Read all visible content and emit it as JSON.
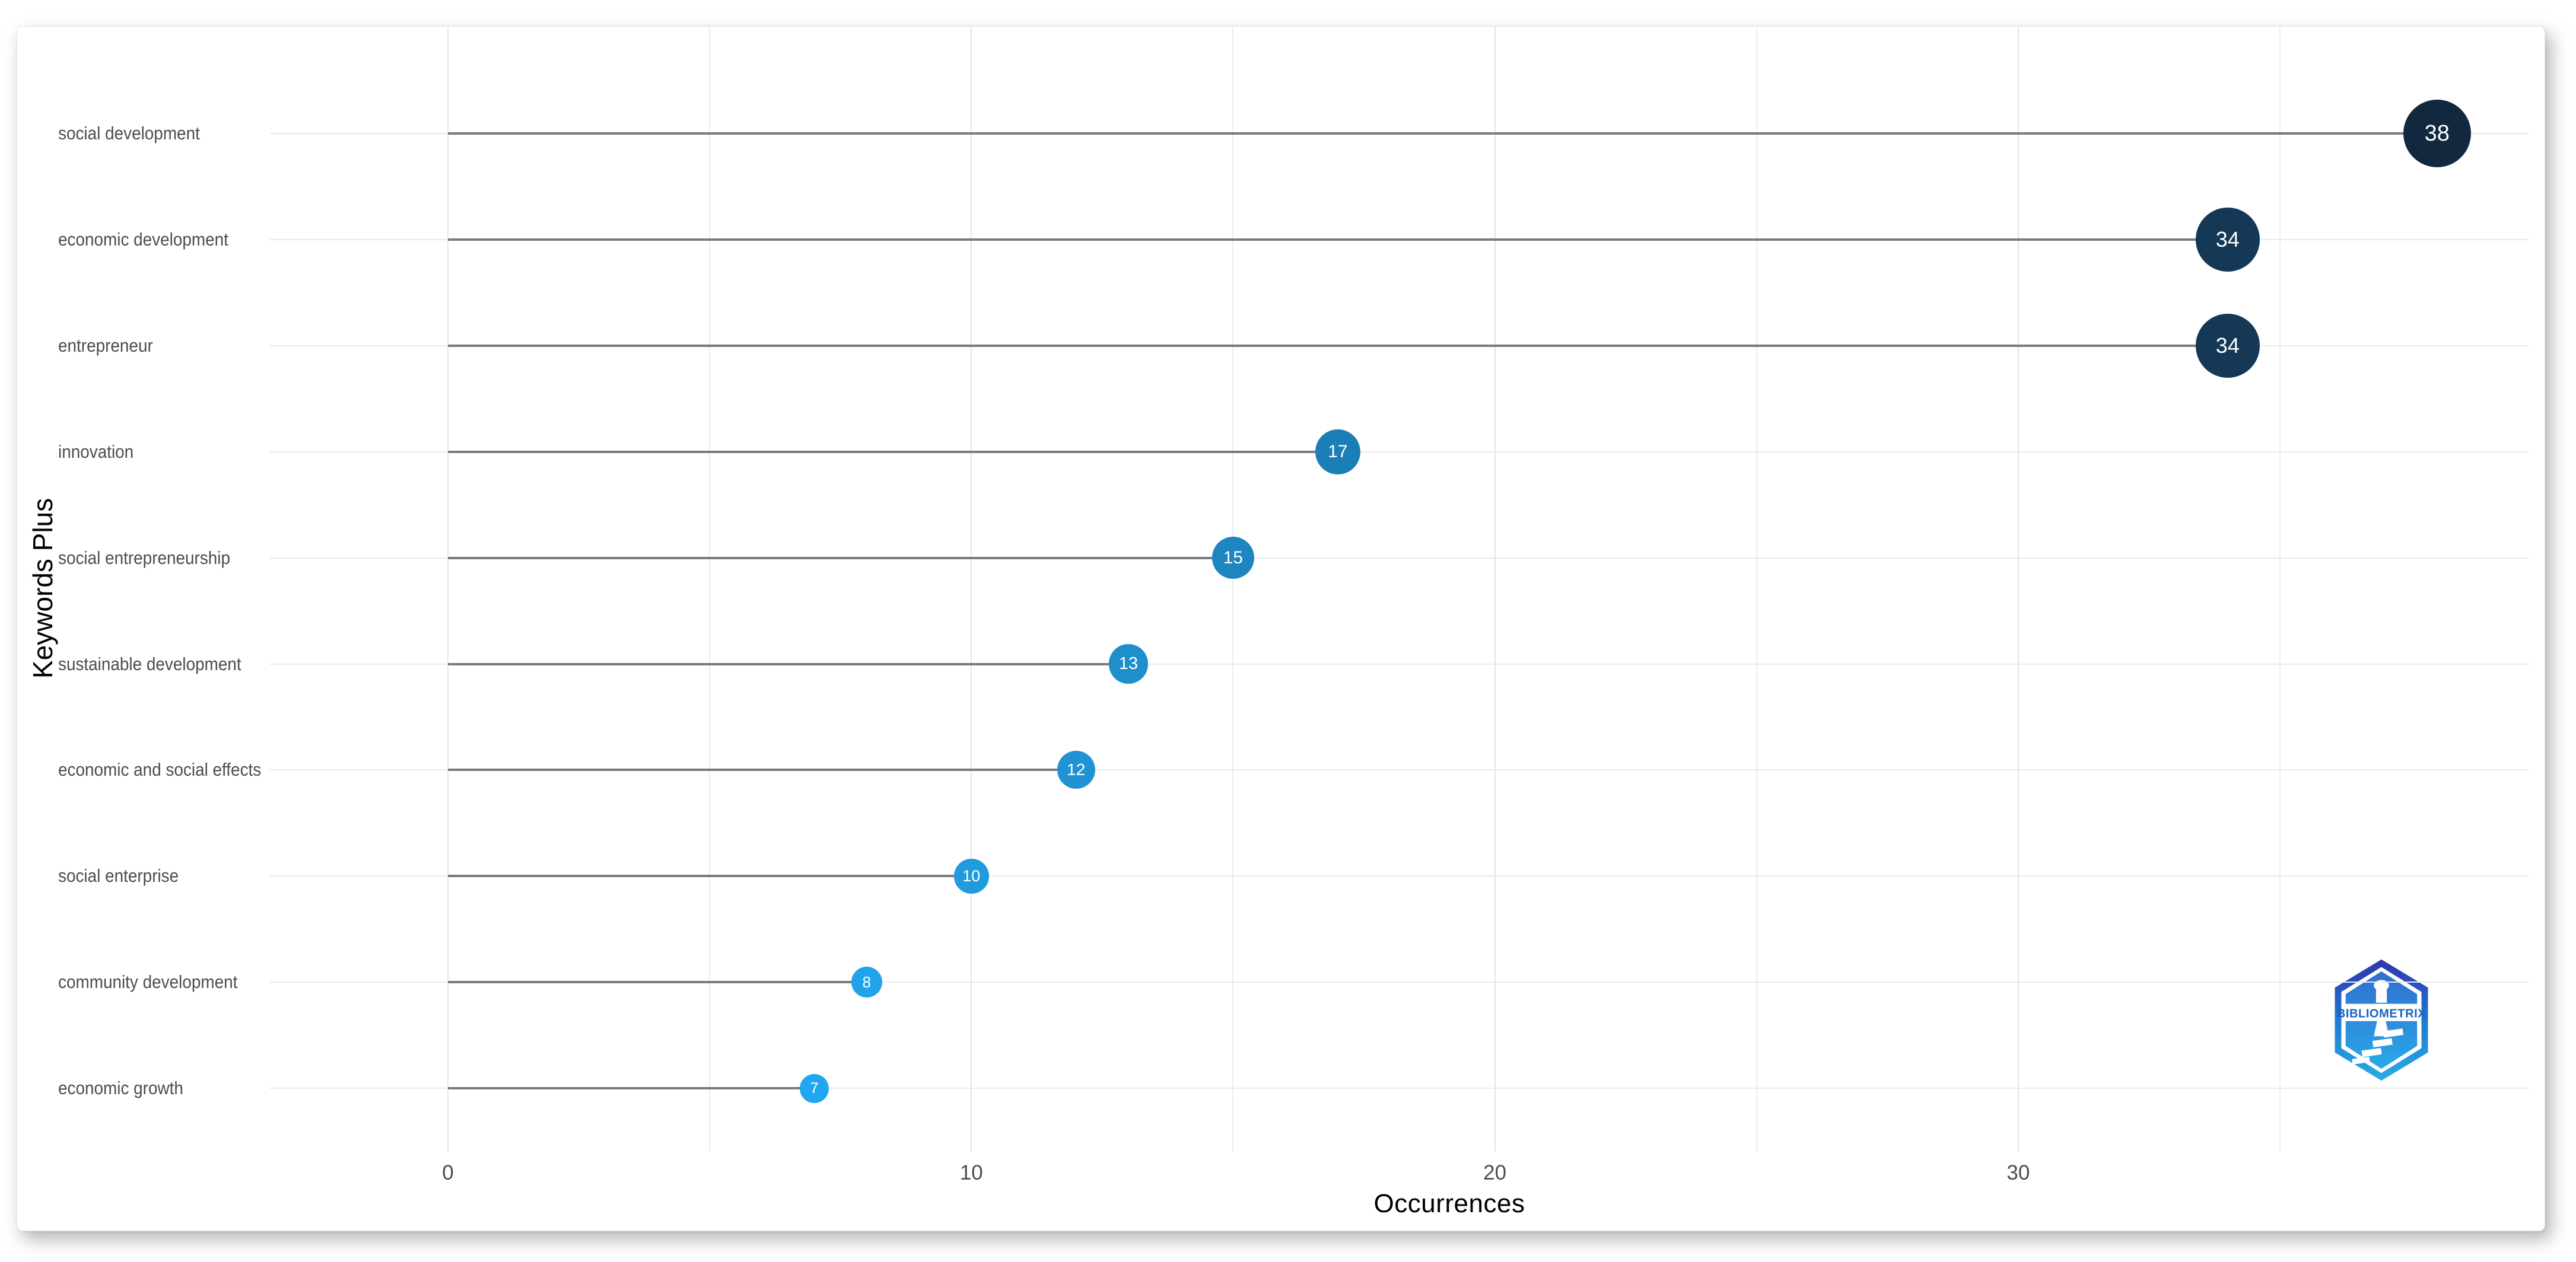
{
  "chart_data": {
    "type": "scatter",
    "subtype": "horizontal-lollipop",
    "title": "",
    "xlabel": "Occurrences",
    "ylabel": "Keywords Plus",
    "categories": [
      "social development",
      "economic development",
      "entrepreneur",
      "innovation",
      "social entrepreneurship",
      "sustainable development",
      "economic and social effects",
      "social enterprise",
      "community development",
      "economic growth"
    ],
    "values": [
      38,
      34,
      34,
      17,
      15,
      13,
      12,
      10,
      8,
      7
    ],
    "point_colors": [
      "#12283E",
      "#143856",
      "#143856",
      "#1C7EB6",
      "#1D86C1",
      "#1E8ECD",
      "#1F93D3",
      "#209BDE",
      "#21A3E9",
      "#21A7EF"
    ],
    "x_ticks": [
      0,
      10,
      20,
      30
    ],
    "x_minor_ticks": [
      5,
      15,
      25,
      35
    ],
    "xlim": [
      -3.4,
      39.8
    ],
    "grid": "on",
    "legend": "none",
    "colors": {
      "stem": "#7a7a7a",
      "grid_major": "#e4e4e4",
      "grid_minor": "#ededed",
      "row_grid": "#e9e9e9",
      "tick_label": "#4d4d4d",
      "category_label": "#4d4d4d",
      "axis_title": "#000000",
      "dot_label": "#ffffff",
      "background": "#ffffff"
    }
  },
  "logo": {
    "text": "BIBLIOMETRIX",
    "accent_dark": "#2d35ad",
    "accent_light": "#29abe2",
    "text_color": "#1565c0"
  }
}
